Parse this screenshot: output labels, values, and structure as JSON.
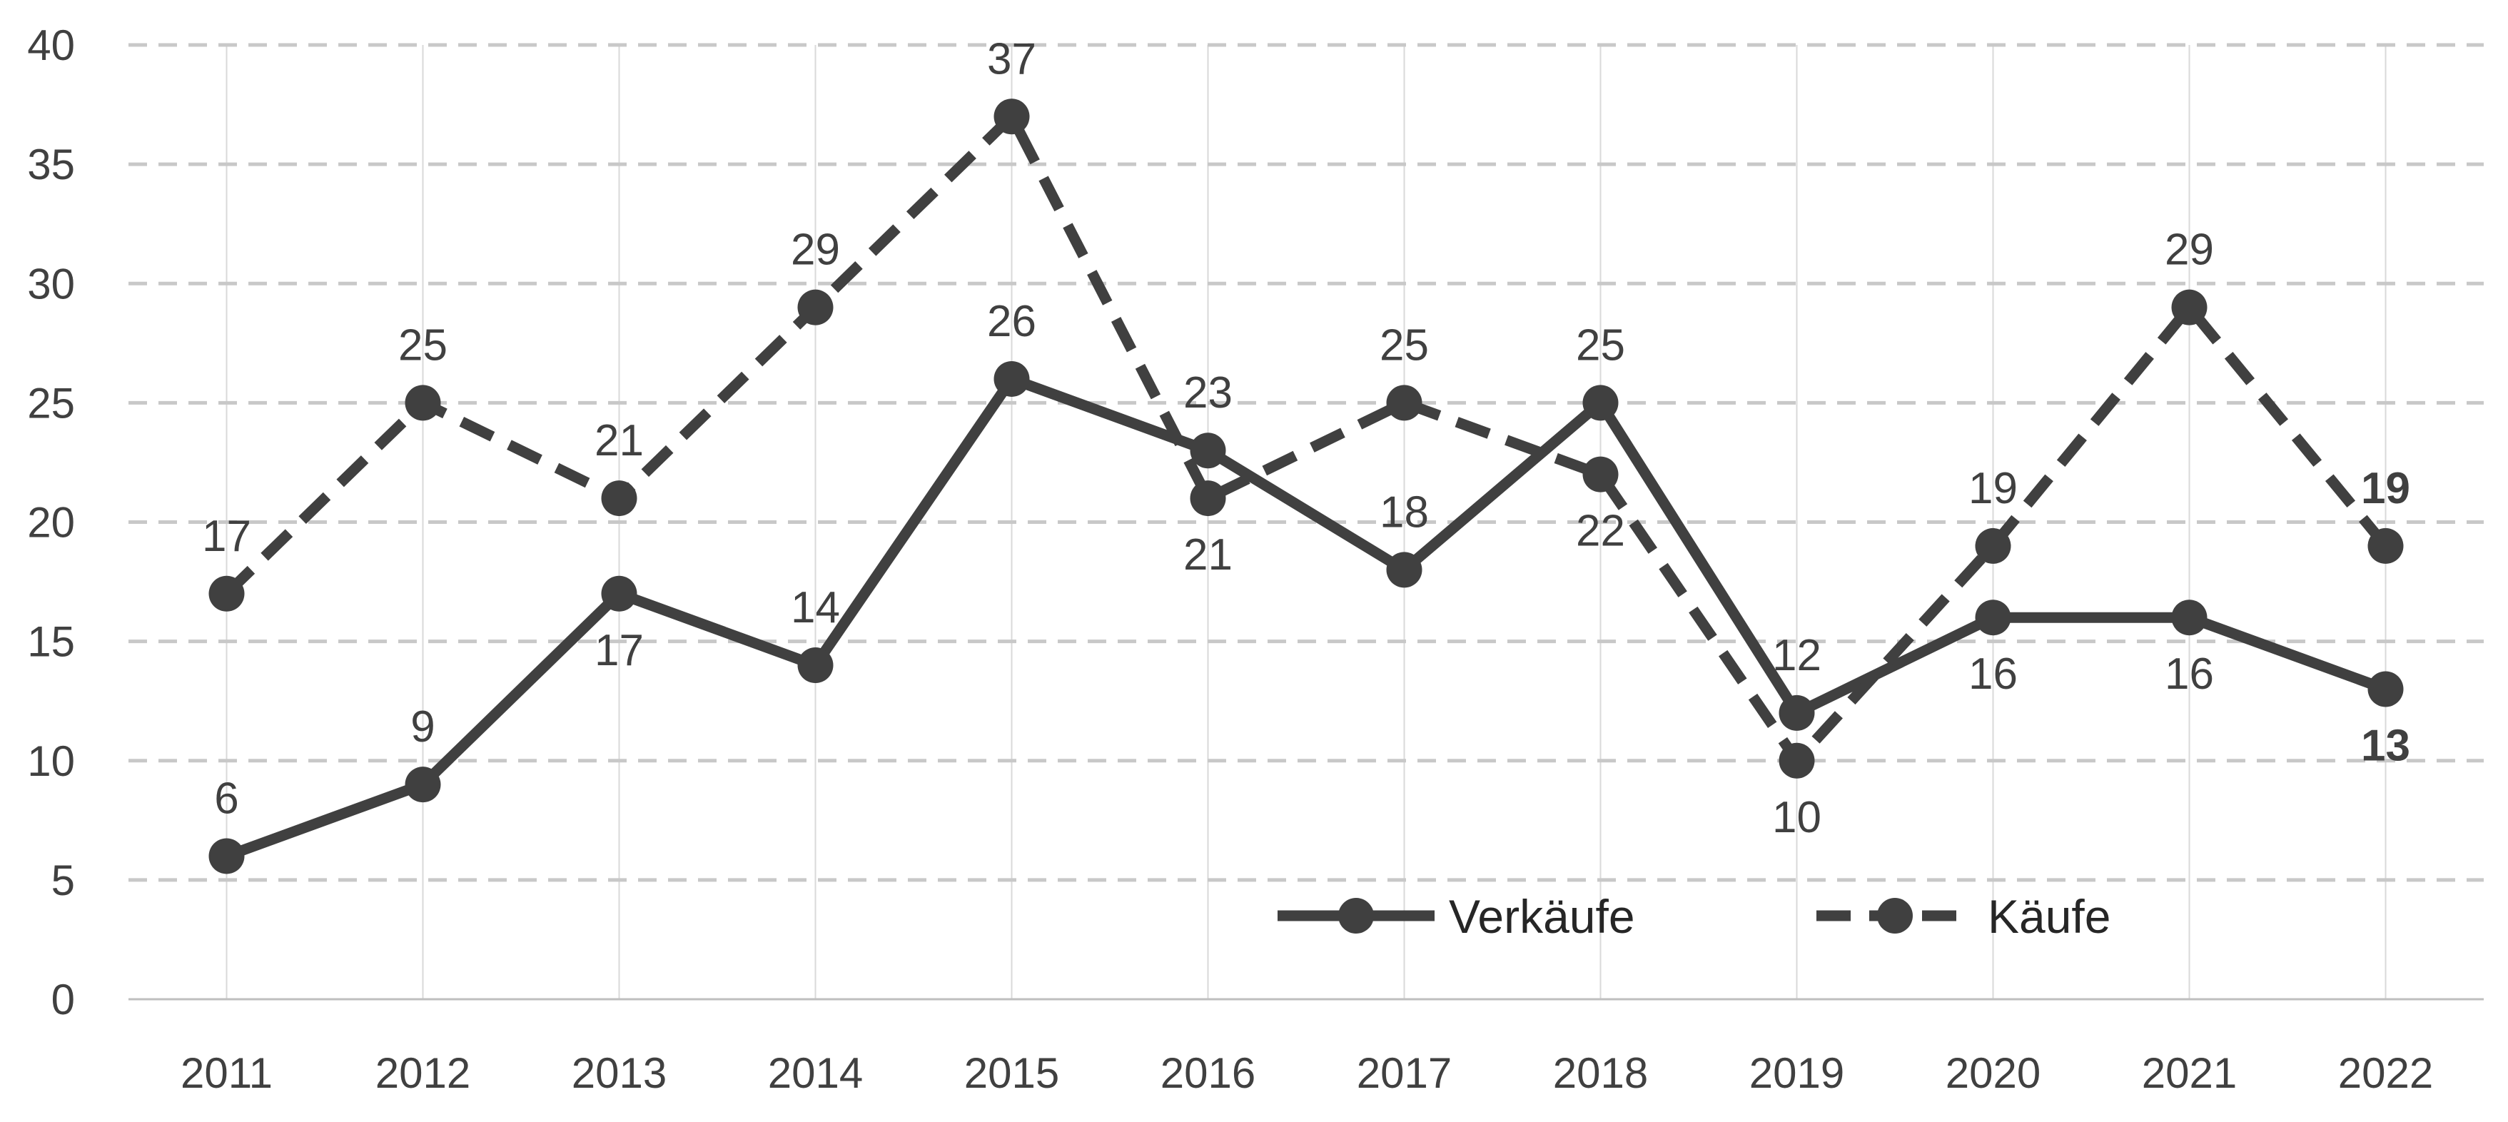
{
  "chart_data": {
    "type": "line",
    "title": "",
    "xlabel": "",
    "ylabel": "",
    "categories": [
      "2011",
      "2012",
      "2013",
      "2014",
      "2015",
      "2016",
      "2017",
      "2018",
      "2019",
      "2020",
      "2021",
      "2022"
    ],
    "ylim": [
      0,
      40
    ],
    "yticks": [
      0,
      5,
      10,
      15,
      20,
      25,
      30,
      35,
      40
    ],
    "grid": {
      "horizontal": "dashed",
      "vertical": "solid-light"
    },
    "legend": {
      "position": "bottom-right-inside"
    },
    "series": [
      {
        "name": "Verkäufe",
        "style": "solid",
        "marker": "circle",
        "color": "#404040",
        "values": [
          6,
          9,
          17,
          14,
          26,
          23,
          18,
          25,
          12,
          16,
          16,
          13
        ],
        "label_positions": [
          "above",
          "above",
          "below",
          "above",
          "above",
          "above",
          "above",
          "above",
          "above",
          "below",
          "below",
          "below"
        ],
        "label_bold": [
          false,
          false,
          false,
          false,
          false,
          false,
          false,
          false,
          false,
          false,
          false,
          true
        ]
      },
      {
        "name": "Käufe",
        "style": "dashed",
        "marker": "circle",
        "color": "#404040",
        "values": [
          17,
          25,
          21,
          29,
          37,
          21,
          25,
          22,
          10,
          19,
          29,
          19
        ],
        "label_positions": [
          "above",
          "above",
          "above",
          "above",
          "above",
          "below",
          "above",
          "below",
          "below",
          "above",
          "above",
          "above"
        ],
        "label_bold": [
          false,
          false,
          false,
          false,
          false,
          false,
          false,
          false,
          false,
          false,
          false,
          true
        ]
      }
    ]
  },
  "colors": {
    "series": "#404040",
    "axis_text": "#404040",
    "grid_dashed": "#c8c8c8",
    "grid_vertical": "#d9d9d9",
    "axis_line": "#bfbfbf"
  }
}
